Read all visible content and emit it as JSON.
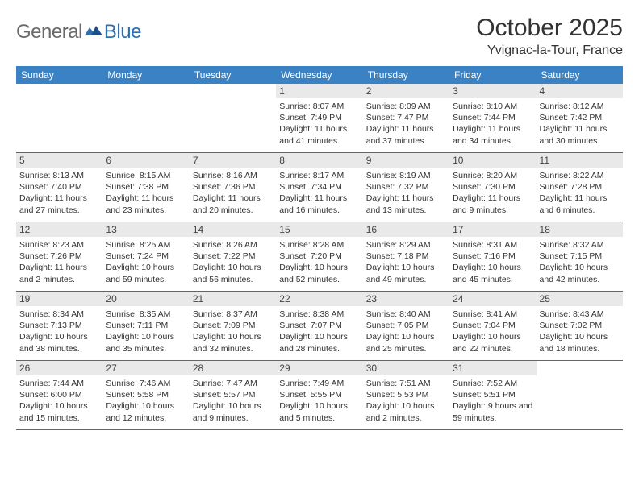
{
  "logo": {
    "text1": "General",
    "text2": "Blue"
  },
  "title": "October 2025",
  "location": "Yvignac-la-Tour, France",
  "colors": {
    "header_bg": "#3b82c4",
    "header_text": "#ffffff",
    "daynum_bg": "#e9e9e9",
    "border": "#3b6fa3",
    "logo_gray": "#6a6a6a",
    "logo_blue": "#2f6fae"
  },
  "weekdays": [
    "Sunday",
    "Monday",
    "Tuesday",
    "Wednesday",
    "Thursday",
    "Friday",
    "Saturday"
  ],
  "weeks": [
    [
      {
        "empty": true
      },
      {
        "empty": true
      },
      {
        "empty": true
      },
      {
        "n": "1",
        "sr": "8:07 AM",
        "ss": "7:49 PM",
        "dl": "11 hours and 41 minutes."
      },
      {
        "n": "2",
        "sr": "8:09 AM",
        "ss": "7:47 PM",
        "dl": "11 hours and 37 minutes."
      },
      {
        "n": "3",
        "sr": "8:10 AM",
        "ss": "7:44 PM",
        "dl": "11 hours and 34 minutes."
      },
      {
        "n": "4",
        "sr": "8:12 AM",
        "ss": "7:42 PM",
        "dl": "11 hours and 30 minutes."
      }
    ],
    [
      {
        "n": "5",
        "sr": "8:13 AM",
        "ss": "7:40 PM",
        "dl": "11 hours and 27 minutes."
      },
      {
        "n": "6",
        "sr": "8:15 AM",
        "ss": "7:38 PM",
        "dl": "11 hours and 23 minutes."
      },
      {
        "n": "7",
        "sr": "8:16 AM",
        "ss": "7:36 PM",
        "dl": "11 hours and 20 minutes."
      },
      {
        "n": "8",
        "sr": "8:17 AM",
        "ss": "7:34 PM",
        "dl": "11 hours and 16 minutes."
      },
      {
        "n": "9",
        "sr": "8:19 AM",
        "ss": "7:32 PM",
        "dl": "11 hours and 13 minutes."
      },
      {
        "n": "10",
        "sr": "8:20 AM",
        "ss": "7:30 PM",
        "dl": "11 hours and 9 minutes."
      },
      {
        "n": "11",
        "sr": "8:22 AM",
        "ss": "7:28 PM",
        "dl": "11 hours and 6 minutes."
      }
    ],
    [
      {
        "n": "12",
        "sr": "8:23 AM",
        "ss": "7:26 PM",
        "dl": "11 hours and 2 minutes."
      },
      {
        "n": "13",
        "sr": "8:25 AM",
        "ss": "7:24 PM",
        "dl": "10 hours and 59 minutes."
      },
      {
        "n": "14",
        "sr": "8:26 AM",
        "ss": "7:22 PM",
        "dl": "10 hours and 56 minutes."
      },
      {
        "n": "15",
        "sr": "8:28 AM",
        "ss": "7:20 PM",
        "dl": "10 hours and 52 minutes."
      },
      {
        "n": "16",
        "sr": "8:29 AM",
        "ss": "7:18 PM",
        "dl": "10 hours and 49 minutes."
      },
      {
        "n": "17",
        "sr": "8:31 AM",
        "ss": "7:16 PM",
        "dl": "10 hours and 45 minutes."
      },
      {
        "n": "18",
        "sr": "8:32 AM",
        "ss": "7:15 PM",
        "dl": "10 hours and 42 minutes."
      }
    ],
    [
      {
        "n": "19",
        "sr": "8:34 AM",
        "ss": "7:13 PM",
        "dl": "10 hours and 38 minutes."
      },
      {
        "n": "20",
        "sr": "8:35 AM",
        "ss": "7:11 PM",
        "dl": "10 hours and 35 minutes."
      },
      {
        "n": "21",
        "sr": "8:37 AM",
        "ss": "7:09 PM",
        "dl": "10 hours and 32 minutes."
      },
      {
        "n": "22",
        "sr": "8:38 AM",
        "ss": "7:07 PM",
        "dl": "10 hours and 28 minutes."
      },
      {
        "n": "23",
        "sr": "8:40 AM",
        "ss": "7:05 PM",
        "dl": "10 hours and 25 minutes."
      },
      {
        "n": "24",
        "sr": "8:41 AM",
        "ss": "7:04 PM",
        "dl": "10 hours and 22 minutes."
      },
      {
        "n": "25",
        "sr": "8:43 AM",
        "ss": "7:02 PM",
        "dl": "10 hours and 18 minutes."
      }
    ],
    [
      {
        "n": "26",
        "sr": "7:44 AM",
        "ss": "6:00 PM",
        "dl": "10 hours and 15 minutes."
      },
      {
        "n": "27",
        "sr": "7:46 AM",
        "ss": "5:58 PM",
        "dl": "10 hours and 12 minutes."
      },
      {
        "n": "28",
        "sr": "7:47 AM",
        "ss": "5:57 PM",
        "dl": "10 hours and 9 minutes."
      },
      {
        "n": "29",
        "sr": "7:49 AM",
        "ss": "5:55 PM",
        "dl": "10 hours and 5 minutes."
      },
      {
        "n": "30",
        "sr": "7:51 AM",
        "ss": "5:53 PM",
        "dl": "10 hours and 2 minutes."
      },
      {
        "n": "31",
        "sr": "7:52 AM",
        "ss": "5:51 PM",
        "dl": "9 hours and 59 minutes."
      },
      {
        "empty": true
      }
    ]
  ],
  "labels": {
    "sunrise": "Sunrise:",
    "sunset": "Sunset:",
    "daylight": "Daylight:"
  }
}
